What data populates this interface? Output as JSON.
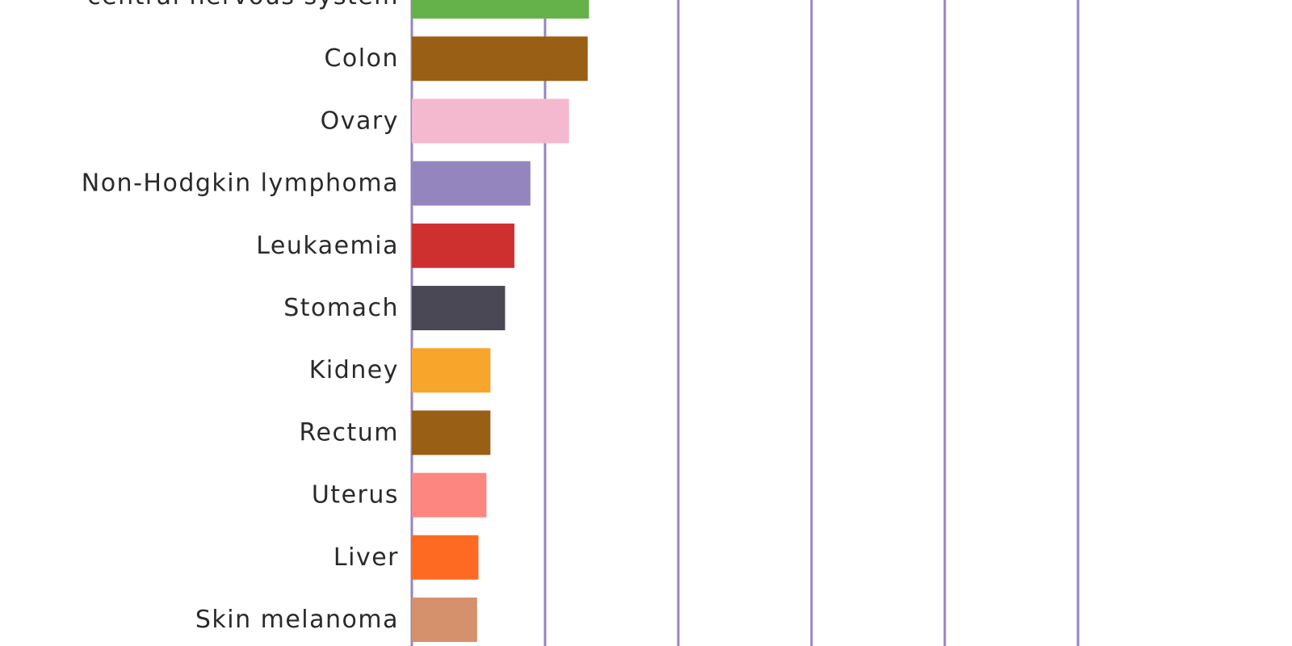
{
  "chart_data": {
    "type": "bar",
    "orientation": "horizontal",
    "categories": [
      "central nervous system",
      "Colon",
      "Ovary",
      "Non-Hodgkin lymphoma",
      "Leukaemia",
      "Stomach",
      "Kidney",
      "Rectum",
      "Uterus",
      "Liver",
      "Skin melanoma"
    ],
    "values": [
      1.33,
      1.32,
      1.18,
      0.89,
      0.77,
      0.7,
      0.59,
      0.59,
      0.56,
      0.5,
      0.49
    ],
    "colors": [
      "#66b24a",
      "#995f15",
      "#f4b8cf",
      "#9585bf",
      "#ce302f",
      "#4a4854",
      "#f8a52c",
      "#995f15",
      "#fe8681",
      "#fe6a22",
      "#d5906c"
    ],
    "xlim": [
      0,
      6.5
    ],
    "gridline_values": [
      0,
      1,
      2,
      3,
      4,
      5
    ],
    "gridline_color": "#9585bf",
    "grid": true,
    "title": "",
    "xlabel": "",
    "ylabel": ""
  }
}
